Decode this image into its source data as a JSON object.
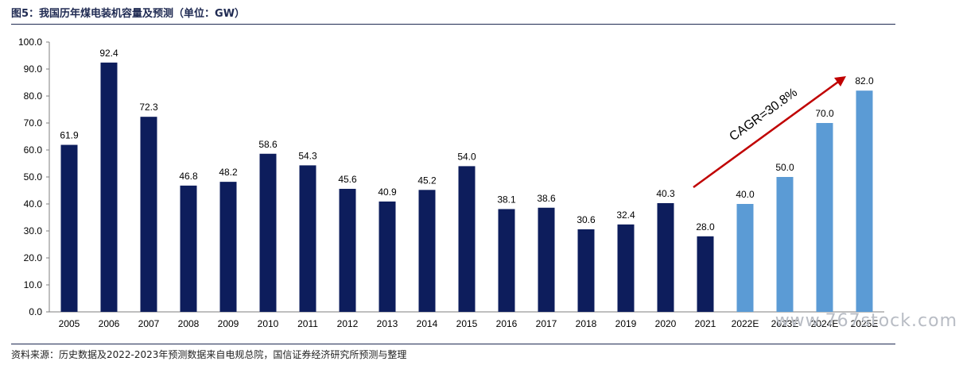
{
  "header": {
    "title": "图5：我国历年煤电装机容量及预测（单位：GW）"
  },
  "footer": {
    "source": "资料来源：历史数据及2022-2023年预测数据来自电规总院，国信证券经济研究所预测与整理"
  },
  "watermark": "www.767stock.com",
  "chart_data": {
    "type": "bar",
    "title": "图5：我国历年煤电装机容量及预测（单位：GW）",
    "xlabel": "",
    "ylabel": "",
    "ylim": [
      0,
      100
    ],
    "ytick_step": 10,
    "yticks": [
      "0.0",
      "10.0",
      "20.0",
      "30.0",
      "40.0",
      "50.0",
      "60.0",
      "70.0",
      "80.0",
      "90.0",
      "100.0"
    ],
    "categories": [
      "2005",
      "2006",
      "2007",
      "2008",
      "2009",
      "2010",
      "2011",
      "2012",
      "2013",
      "2014",
      "2015",
      "2016",
      "2017",
      "2018",
      "2019",
      "2020",
      "2021",
      "2022E",
      "2023E",
      "2024E",
      "2025E"
    ],
    "values": [
      61.9,
      92.4,
      72.3,
      46.8,
      48.2,
      58.6,
      54.3,
      45.6,
      40.9,
      45.2,
      54.0,
      38.1,
      38.6,
      30.6,
      32.4,
      40.3,
      28.0,
      40.0,
      50.0,
      70.0,
      82.0
    ],
    "data_labels": [
      "61.9",
      "92.4",
      "72.3",
      "46.8",
      "48.2",
      "58.6",
      "54.3",
      "45.6",
      "40.9",
      "45.2",
      "54.0",
      "38.1",
      "38.6",
      "30.6",
      "32.4",
      "40.3",
      "28.0",
      "40.0",
      "50.0",
      "70.0",
      "82.0"
    ],
    "forecast_from_index": 17,
    "colors": {
      "actual": "#0d1d5c",
      "forecast": "#5b9bd5",
      "arrow": "#c00000",
      "axis": "#7f7f7f"
    },
    "grid": false,
    "legend": "none",
    "annotations": [
      {
        "text": "CAGR=30.8%",
        "type": "arrow",
        "from_category": "2021",
        "to_category": "2025E"
      }
    ]
  }
}
